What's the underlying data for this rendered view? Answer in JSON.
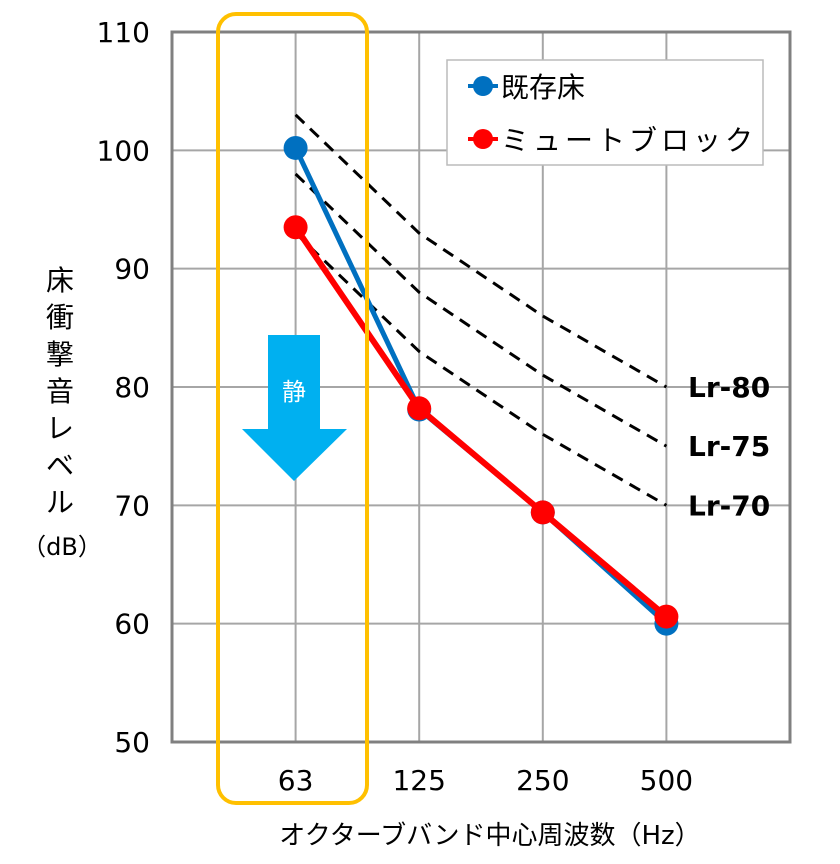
{
  "chart_data": {
    "type": "line",
    "title": "",
    "xlabel": "オクターブバンド中心周波数（Hz）",
    "ylabel_chars": [
      "床",
      "衝",
      "撃",
      "音",
      "レ",
      "ベ",
      "ル",
      "（dB）"
    ],
    "ylabel": "床衝撃音レベル（dB）",
    "categories": [
      "63",
      "125",
      "250",
      "500"
    ],
    "ylim": [
      50,
      110
    ],
    "yticks": [
      50,
      60,
      70,
      80,
      90,
      100,
      110
    ],
    "grid": true,
    "legend_position": "top-right",
    "series": [
      {
        "name": "既存床",
        "color": "#0070C0",
        "values": [
          100.2,
          78.1,
          69.4,
          60.0
        ]
      },
      {
        "name": "ミュートブロック",
        "color": "#FF0000",
        "values": [
          93.5,
          78.2,
          69.4,
          60.6
        ]
      }
    ],
    "reference_curves": [
      {
        "name": "Lr-80",
        "values": [
          103,
          93,
          86,
          80
        ]
      },
      {
        "name": "Lr-75",
        "values": [
          98,
          88,
          81,
          75
        ]
      },
      {
        "name": "Lr-70",
        "values": [
          93,
          83,
          76,
          70
        ]
      }
    ],
    "annotations": {
      "arrow_label": "静",
      "arrow_color": "#00B0F0",
      "highlight_category": "63",
      "highlight_color": "#FFC000"
    }
  }
}
